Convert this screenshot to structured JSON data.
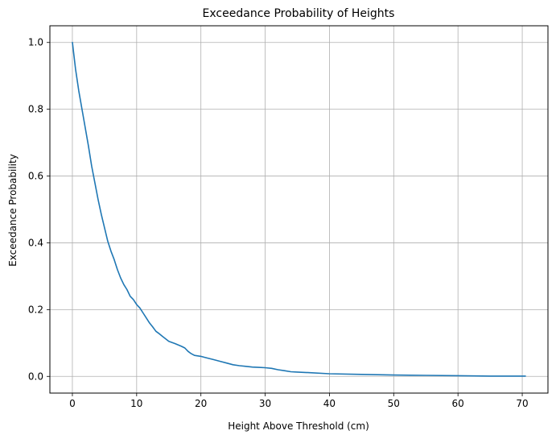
{
  "chart_data": {
    "type": "line",
    "title": "Exceedance Probability of Heights",
    "xlabel": "Height Above Threshold (cm)",
    "ylabel": "Exceedance Probability",
    "xlim": [
      -3.5,
      74.0
    ],
    "ylim": [
      -0.05,
      1.05
    ],
    "xticks": [
      0,
      10,
      20,
      30,
      40,
      50,
      60,
      70
    ],
    "xtick_labels": [
      "0",
      "10",
      "20",
      "30",
      "40",
      "50",
      "60",
      "70"
    ],
    "yticks": [
      0.0,
      0.2,
      0.4,
      0.6,
      0.8,
      1.0
    ],
    "ytick_labels": [
      "0.0",
      "0.2",
      "0.4",
      "0.6",
      "0.8",
      "1.0"
    ],
    "grid": true,
    "legend": "none",
    "series": [
      {
        "color": "#1f77b4",
        "x": [
          0,
          0.5,
          1,
          1.5,
          2,
          2.5,
          3,
          3.5,
          4,
          4.5,
          5,
          5.5,
          6,
          6.5,
          7,
          7.5,
          8,
          8.5,
          9,
          9.5,
          10,
          10.5,
          11,
          11.5,
          12,
          12.5,
          13,
          13.5,
          14,
          15,
          16,
          17,
          17.5,
          18,
          18.5,
          19,
          20,
          21,
          22,
          23,
          24,
          25,
          26,
          27,
          28,
          29,
          30,
          31,
          32,
          33,
          34,
          35,
          37,
          40,
          45,
          50,
          55,
          60,
          65,
          70.5
        ],
        "y": [
          1.0,
          0.92,
          0.855,
          0.8,
          0.745,
          0.69,
          0.63,
          0.58,
          0.53,
          0.485,
          0.445,
          0.405,
          0.375,
          0.35,
          0.32,
          0.295,
          0.275,
          0.26,
          0.24,
          0.23,
          0.215,
          0.205,
          0.19,
          0.175,
          0.16,
          0.148,
          0.135,
          0.128,
          0.12,
          0.105,
          0.098,
          0.09,
          0.085,
          0.075,
          0.068,
          0.063,
          0.06,
          0.055,
          0.05,
          0.045,
          0.04,
          0.035,
          0.032,
          0.03,
          0.028,
          0.027,
          0.026,
          0.024,
          0.02,
          0.017,
          0.014,
          0.013,
          0.011,
          0.008,
          0.006,
          0.004,
          0.003,
          0.002,
          0.001,
          0.001
        ]
      }
    ]
  }
}
